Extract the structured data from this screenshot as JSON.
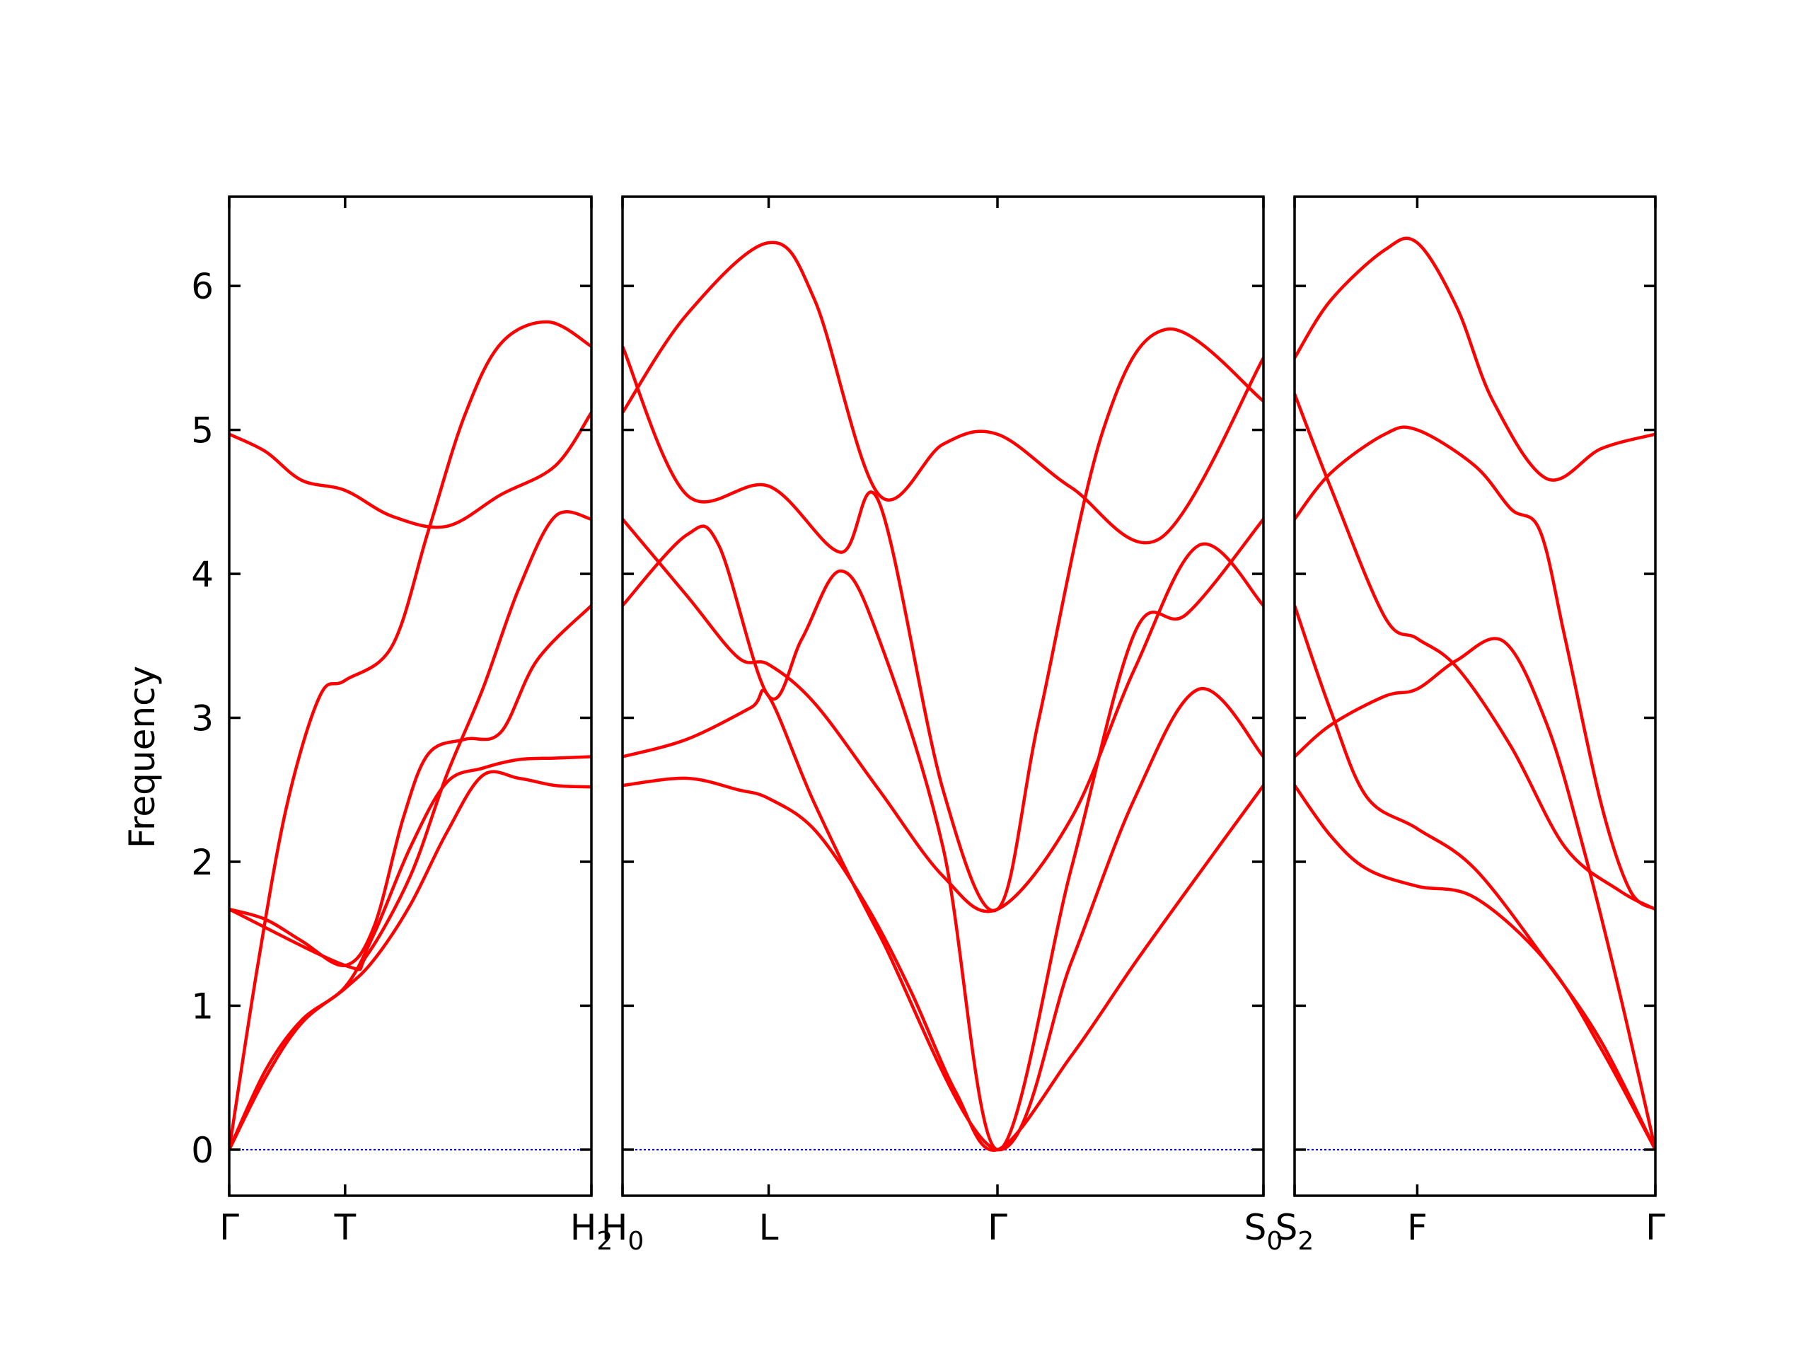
{
  "chart_data": {
    "type": "line",
    "ylabel": "Frequency",
    "ylim": [
      -0.32,
      6.62
    ],
    "yticks": [
      0,
      1,
      2,
      3,
      4,
      5,
      6
    ],
    "series_color": "#ff0000",
    "zero_line_color": "#0000cc",
    "panels": [
      {
        "xlim": [
          0,
          1
        ],
        "ticks": [
          {
            "pos": 0,
            "label": "Γ",
            "sub": ""
          },
          {
            "pos": 0.32,
            "label": "T",
            "sub": ""
          },
          {
            "pos": 1,
            "label": "H",
            "sub": "2"
          }
        ],
        "series": [
          {
            "points": [
              [
                0,
                0
              ],
              [
                0.1,
                0.5
              ],
              [
                0.2,
                0.88
              ],
              [
                0.32,
                1.12
              ],
              [
                0.4,
                1.32
              ],
              [
                0.5,
                1.7
              ],
              [
                0.6,
                2.2
              ],
              [
                0.7,
                2.6
              ],
              [
                0.8,
                2.58
              ],
              [
                0.9,
                2.53
              ],
              [
                1,
                2.52
              ]
            ]
          },
          {
            "points": [
              [
                0,
                0
              ],
              [
                0.1,
                0.55
              ],
              [
                0.2,
                0.9
              ],
              [
                0.32,
                1.13
              ],
              [
                0.4,
                1.5
              ],
              [
                0.5,
                2.1
              ],
              [
                0.6,
                2.55
              ],
              [
                0.7,
                2.65
              ],
              [
                0.8,
                2.71
              ],
              [
                0.9,
                2.72
              ],
              [
                1,
                2.73
              ]
            ]
          },
          {
            "points": [
              [
                0,
                0
              ],
              [
                0.08,
                1.3
              ],
              [
                0.16,
                2.4
              ],
              [
                0.25,
                3.15
              ],
              [
                0.32,
                3.26
              ],
              [
                0.45,
                3.5
              ],
              [
                0.55,
                4.3
              ],
              [
                0.65,
                5.1
              ],
              [
                0.75,
                5.6
              ],
              [
                0.88,
                5.75
              ],
              [
                1,
                5.58
              ]
            ]
          },
          {
            "points": [
              [
                0,
                1.67
              ],
              [
                0.1,
                1.6
              ],
              [
                0.2,
                1.45
              ],
              [
                0.32,
                1.28
              ],
              [
                0.4,
                1.55
              ],
              [
                0.48,
                2.3
              ],
              [
                0.55,
                2.75
              ],
              [
                0.65,
                2.85
              ],
              [
                0.75,
                2.9
              ],
              [
                0.85,
                3.4
              ],
              [
                1,
                3.78
              ]
            ]
          },
          {
            "points": [
              [
                0,
                1.67
              ],
              [
                0.32,
                1.28
              ],
              [
                0.38,
                1.35
              ],
              [
                0.5,
                1.9
              ],
              [
                0.6,
                2.6
              ],
              [
                0.7,
                3.2
              ],
              [
                0.8,
                3.9
              ],
              [
                0.9,
                4.4
              ],
              [
                1,
                4.38
              ]
            ]
          },
          {
            "points": [
              [
                0,
                4.97
              ],
              [
                0.1,
                4.85
              ],
              [
                0.2,
                4.65
              ],
              [
                0.32,
                4.58
              ],
              [
                0.45,
                4.4
              ],
              [
                0.6,
                4.33
              ],
              [
                0.75,
                4.55
              ],
              [
                0.9,
                4.75
              ],
              [
                1,
                5.12
              ]
            ]
          }
        ]
      },
      {
        "xlim": [
          0,
          1
        ],
        "ticks": [
          {
            "pos": 0,
            "label": "H",
            "sub": "0"
          },
          {
            "pos": 0.228,
            "label": "L",
            "sub": ""
          },
          {
            "pos": 0.585,
            "label": "Γ",
            "sub": ""
          },
          {
            "pos": 1,
            "label": "S",
            "sub": "0"
          }
        ],
        "series": [
          {
            "points": [
              [
                0,
                2.53
              ],
              [
                0.1,
                2.58
              ],
              [
                0.18,
                2.5
              ],
              [
                0.228,
                2.44
              ],
              [
                0.3,
                2.22
              ],
              [
                0.38,
                1.7
              ],
              [
                0.45,
                1.1
              ],
              [
                0.52,
                0.4
              ],
              [
                0.585,
                0
              ],
              [
                0.7,
                0.65
              ],
              [
                0.8,
                1.3
              ],
              [
                0.9,
                1.92
              ],
              [
                1,
                2.53
              ]
            ]
          },
          {
            "points": [
              [
                0,
                2.73
              ],
              [
                0.1,
                2.85
              ],
              [
                0.2,
                3.07
              ],
              [
                0.228,
                3.15
              ],
              [
                0.3,
                2.4
              ],
              [
                0.4,
                1.5
              ],
              [
                0.585,
                0
              ],
              [
                0.7,
                1.3
              ],
              [
                0.8,
                2.45
              ],
              [
                0.9,
                3.2
              ],
              [
                1,
                2.73
              ]
            ]
          },
          {
            "points": [
              [
                0,
                4.38
              ],
              [
                0.1,
                3.85
              ],
              [
                0.18,
                3.42
              ],
              [
                0.228,
                3.37
              ],
              [
                0.3,
                3.1
              ],
              [
                0.4,
                2.5
              ],
              [
                0.5,
                1.9
              ],
              [
                0.585,
                1.67
              ],
              [
                0.7,
                2.3
              ],
              [
                0.8,
                3.35
              ],
              [
                0.9,
                4.2
              ],
              [
                1,
                3.78
              ]
            ]
          },
          {
            "points": [
              [
                0,
                3.78
              ],
              [
                0.1,
                4.27
              ],
              [
                0.15,
                4.2
              ],
              [
                0.228,
                3.15
              ],
              [
                0.28,
                3.55
              ],
              [
                0.34,
                4.02
              ],
              [
                0.4,
                3.55
              ],
              [
                0.5,
                2.1
              ],
              [
                0.585,
                0
              ],
              [
                0.7,
                1.95
              ],
              [
                0.8,
                3.6
              ],
              [
                0.88,
                3.72
              ],
              [
                1,
                4.38
              ]
            ]
          },
          {
            "points": [
              [
                0,
                5.58
              ],
              [
                0.1,
                4.55
              ],
              [
                0.228,
                4.61
              ],
              [
                0.34,
                4.15
              ],
              [
                0.4,
                4.5
              ],
              [
                0.5,
                2.5
              ],
              [
                0.585,
                1.67
              ],
              [
                0.65,
                3
              ],
              [
                0.75,
                5
              ],
              [
                0.85,
                5.7
              ],
              [
                1,
                5.2
              ]
            ]
          },
          {
            "points": [
              [
                0,
                5.12
              ],
              [
                0.1,
                5.8
              ],
              [
                0.228,
                6.3
              ],
              [
                0.3,
                5.9
              ],
              [
                0.4,
                4.55
              ],
              [
                0.5,
                4.9
              ],
              [
                0.585,
                4.97
              ],
              [
                0.7,
                4.6
              ],
              [
                0.84,
                4.25
              ],
              [
                1,
                5.5
              ]
            ]
          }
        ]
      },
      {
        "xlim": [
          0,
          1
        ],
        "ticks": [
          {
            "pos": 0,
            "label": "S",
            "sub": "2"
          },
          {
            "pos": 0.34,
            "label": "F",
            "sub": ""
          },
          {
            "pos": 1,
            "label": "Γ",
            "sub": ""
          }
        ],
        "series": [
          {
            "points": [
              [
                0,
                2.53
              ],
              [
                0.1,
                2.18
              ],
              [
                0.2,
                1.95
              ],
              [
                0.34,
                1.83
              ],
              [
                0.5,
                1.75
              ],
              [
                0.7,
                1.3
              ],
              [
                0.85,
                0.7
              ],
              [
                1,
                0
              ]
            ]
          },
          {
            "points": [
              [
                0,
                3.78
              ],
              [
                0.1,
                3.05
              ],
              [
                0.2,
                2.45
              ],
              [
                0.34,
                2.23
              ],
              [
                0.5,
                1.95
              ],
              [
                0.7,
                1.3
              ],
              [
                0.85,
                0.75
              ],
              [
                1,
                0
              ]
            ]
          },
          {
            "points": [
              [
                0,
                2.73
              ],
              [
                0.1,
                2.95
              ],
              [
                0.25,
                3.15
              ],
              [
                0.34,
                3.2
              ],
              [
                0.45,
                3.4
              ],
              [
                0.58,
                3.53
              ],
              [
                0.7,
                2.95
              ],
              [
                0.8,
                2.1
              ],
              [
                0.9,
                1.1
              ],
              [
                1,
                0
              ]
            ]
          },
          {
            "points": [
              [
                0,
                5.25
              ],
              [
                0.1,
                4.6
              ],
              [
                0.25,
                3.7
              ],
              [
                0.34,
                3.55
              ],
              [
                0.45,
                3.35
              ],
              [
                0.6,
                2.8
              ],
              [
                0.75,
                2.1
              ],
              [
                0.9,
                1.8
              ],
              [
                1,
                1.67
              ]
            ]
          },
          {
            "points": [
              [
                0,
                4.38
              ],
              [
                0.1,
                4.7
              ],
              [
                0.25,
                4.97
              ],
              [
                0.34,
                5.0
              ],
              [
                0.5,
                4.75
              ],
              [
                0.6,
                4.45
              ],
              [
                0.68,
                4.3
              ],
              [
                0.75,
                3.55
              ],
              [
                0.85,
                2.4
              ],
              [
                0.93,
                1.8
              ],
              [
                1,
                1.67
              ]
            ]
          },
          {
            "points": [
              [
                0,
                5.5
              ],
              [
                0.1,
                5.9
              ],
              [
                0.25,
                6.25
              ],
              [
                0.34,
                6.3
              ],
              [
                0.45,
                5.85
              ],
              [
                0.55,
                5.2
              ],
              [
                0.7,
                4.66
              ],
              [
                0.85,
                4.87
              ],
              [
                1,
                4.97
              ]
            ]
          }
        ]
      }
    ]
  }
}
